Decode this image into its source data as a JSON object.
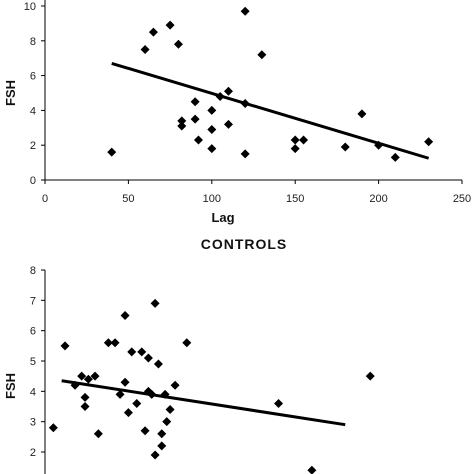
{
  "chart_data": [
    {
      "type": "scatter",
      "title": "",
      "xlabel": "Lag",
      "ylabel": "FSH",
      "xlim": [
        0,
        250
      ],
      "ylim": [
        0,
        10
      ],
      "xticks": [
        "0",
        "50",
        "100",
        "150",
        "200",
        "250"
      ],
      "yticks": [
        "0",
        "2",
        "4",
        "6",
        "8",
        "10"
      ],
      "grid": false,
      "series": [
        {
          "x": [
            40,
            60,
            65,
            75,
            80,
            82,
            82,
            90,
            90,
            92,
            100,
            100,
            100,
            105,
            110,
            110,
            120,
            120,
            120,
            130,
            150,
            150,
            155,
            180,
            190,
            200,
            210,
            230
          ],
          "y": [
            1.6,
            7.5,
            8.5,
            8.9,
            7.8,
            3.4,
            3.1,
            4.5,
            3.5,
            2.3,
            4.0,
            2.9,
            1.8,
            4.8,
            5.1,
            3.2,
            9.7,
            4.4,
            1.5,
            7.2,
            2.3,
            1.8,
            2.3,
            1.9,
            3.8,
            2.0,
            1.3,
            2.2
          ]
        }
      ],
      "trendline": {
        "x": [
          40,
          230
        ],
        "y": [
          6.7,
          1.25
        ]
      }
    },
    {
      "type": "scatter",
      "title": "CONTROLS",
      "xlabel": "",
      "ylabel": "FSH",
      "xlim": [
        0,
        250
      ],
      "ylim": [
        1.5,
        8
      ],
      "yticks": [
        "2",
        "3",
        "4",
        "5",
        "6",
        "7",
        "8"
      ],
      "grid": false,
      "series": [
        {
          "x": [
            5,
            12,
            18,
            22,
            24,
            24,
            26,
            30,
            32,
            38,
            42,
            45,
            48,
            48,
            50,
            52,
            55,
            58,
            60,
            62,
            62,
            64,
            66,
            66,
            68,
            70,
            70,
            72,
            73,
            75,
            78,
            85,
            140,
            160,
            195
          ],
          "y": [
            2.8,
            5.5,
            4.2,
            4.5,
            3.8,
            3.5,
            4.4,
            4.5,
            2.6,
            5.6,
            5.6,
            3.9,
            6.5,
            4.3,
            3.3,
            5.3,
            3.6,
            5.3,
            2.7,
            5.1,
            4.0,
            3.9,
            6.9,
            1.9,
            4.9,
            2.6,
            2.2,
            3.9,
            3.0,
            3.4,
            4.2,
            5.6,
            3.6,
            1.4,
            4.5
          ]
        }
      ],
      "trendline": {
        "x": [
          10,
          180
        ],
        "y": [
          4.35,
          2.9
        ]
      }
    }
  ]
}
